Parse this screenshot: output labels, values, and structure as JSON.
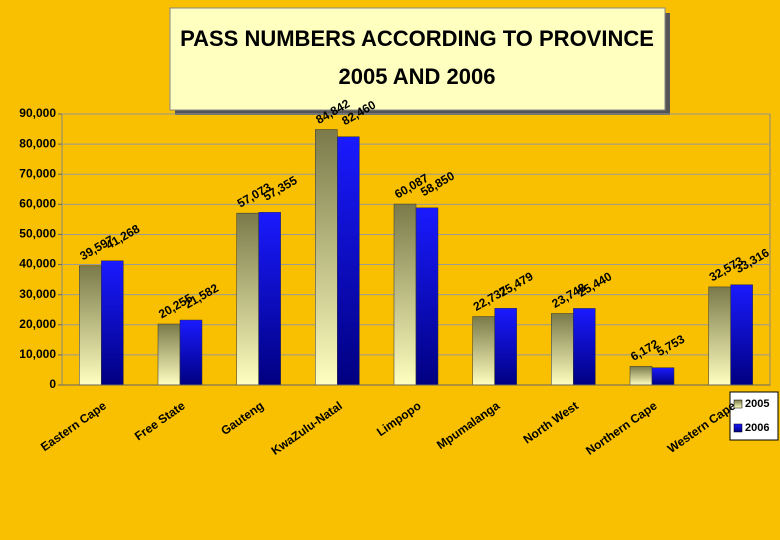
{
  "chart_data": {
    "type": "bar",
    "title": "PASS NUMBERS ACCORDING TO PROVINCE",
    "subtitle": "2005 AND 2006",
    "categories": [
      "Eastern Cape",
      "Free State",
      "Gauteng",
      "KwaZulu-Natal",
      "Limpopo",
      "Mpumalanga",
      "North West",
      "Northern Cape",
      "Western Cape"
    ],
    "series": [
      {
        "name": "2005",
        "color": "#7a7a4a",
        "values": [
          39597,
          20255,
          57073,
          84842,
          60087,
          22737,
          23748,
          6172,
          32573
        ],
        "value_labels": [
          "39,597",
          "20,255",
          "57,073",
          "84,842",
          "60,087",
          "22,737",
          "23,748",
          "6,172",
          "32,573"
        ]
      },
      {
        "name": "2006",
        "color": "#1a1aff",
        "values": [
          41268,
          21582,
          57355,
          82460,
          58850,
          25479,
          25440,
          5753,
          33316
        ],
        "value_labels": [
          "41,268",
          "21,582",
          "57,355",
          "82,460",
          "58,850",
          "25,479",
          "25,440",
          "5,753",
          "33,316"
        ]
      }
    ],
    "ylim": [
      0,
      90000
    ],
    "yticks": [
      0,
      {
        "value": 10000,
        "label": "10,000"
      },
      {
        "value": 20000,
        "label": "20,000"
      },
      {
        "value": 30000,
        "label": "30,000"
      },
      {
        "value": 40000,
        "label": "40,000"
      },
      {
        "value": 50000,
        "label": "50,000"
      },
      {
        "value": 60000,
        "label": "60,000"
      },
      {
        "value": 70000,
        "label": "70,000"
      },
      {
        "value": 80000,
        "label": "80,000"
      },
      {
        "value": 90000,
        "label": "90,000"
      }
    ],
    "grid": true,
    "legend": "bottom-right"
  }
}
